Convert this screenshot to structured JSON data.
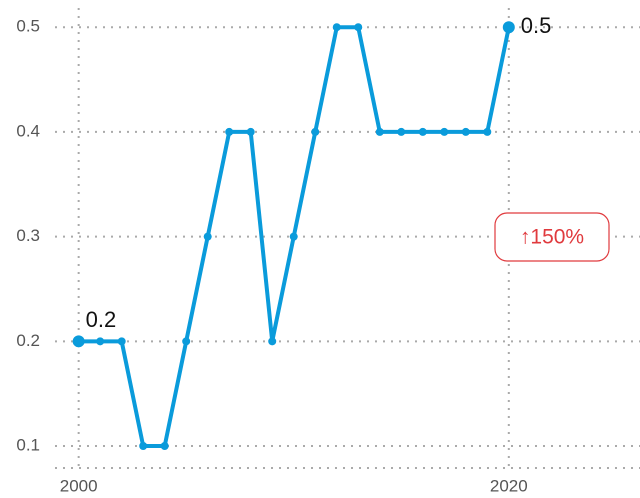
{
  "chart_data": {
    "type": "line",
    "x": [
      2000,
      2001,
      2002,
      2003,
      2004,
      2005,
      2006,
      2007,
      2008,
      2009,
      2010,
      2011,
      2012,
      2013,
      2014,
      2015,
      2016,
      2017,
      2018,
      2019,
      2020
    ],
    "values": [
      0.2,
      0.2,
      0.2,
      0.1,
      0.1,
      0.2,
      0.3,
      0.4,
      0.4,
      0.2,
      0.3,
      0.4,
      0.5,
      0.5,
      0.4,
      0.4,
      0.4,
      0.4,
      0.4,
      0.4,
      0.5
    ],
    "color": "#0a9bdb",
    "start_label": "0.2",
    "end_label": "0.5",
    "change_label": "↑150%",
    "xlim": [
      1998.9,
      2026.1
    ],
    "xticks": [
      2000,
      2020
    ],
    "ylim": [
      0.079,
      0.526
    ],
    "yticks": [
      0.1,
      0.2,
      0.3,
      0.4,
      0.5
    ],
    "grid": true
  }
}
